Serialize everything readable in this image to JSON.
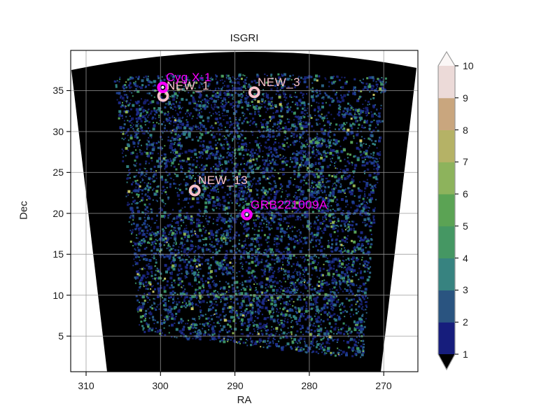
{
  "figure": {
    "title": "ISGRI"
  },
  "axes": {
    "xlabel": "RA",
    "ylabel": "Dec",
    "x_ticks": [
      "310",
      "300",
      "290",
      "280",
      "270"
    ],
    "y_ticks": [
      "35",
      "30",
      "25",
      "20",
      "15",
      "10",
      "5"
    ]
  },
  "chart_data": {
    "type": "heatmap",
    "title": "ISGRI",
    "xlabel": "RA",
    "ylabel": "Dec",
    "x_axis": {
      "ticks": [
        310,
        300,
        290,
        280,
        270
      ],
      "inverted": true,
      "approx_range": [
        312.0,
        265.4
      ]
    },
    "y_axis": {
      "ticks": [
        35,
        30,
        25,
        20,
        15,
        10,
        5
      ],
      "approx_range": [
        0.7,
        40.2
      ]
    },
    "grid": true,
    "field_of_view": "black wedge-shaped coded-mask mosaic, wider at top, curved upper edge",
    "colorbar": {
      "ticks": [
        1,
        2,
        3,
        4,
        5,
        6,
        7,
        8,
        9,
        10
      ],
      "segment_colors": [
        "#161d7c",
        "#2a5480",
        "#378380",
        "#459763",
        "#5ba354",
        "#8db35c",
        "#b5b266",
        "#c9a67e",
        "#ecdad8"
      ],
      "under_color": "#000000",
      "over_color": "#fbf7f6",
      "outline_color": "#999999"
    },
    "sources": [
      {
        "name": "NEW_1",
        "ra": 299.65,
        "dec": 34.35,
        "color": "#f9c2cb",
        "center": "open"
      },
      {
        "name": "Cyg X-1",
        "ra": 299.7,
        "dec": 35.4,
        "color": "#fb00fb",
        "center": "white"
      },
      {
        "name": "NEW_3",
        "ra": 287.4,
        "dec": 34.8,
        "color": "#f9c2cb",
        "center": "open"
      },
      {
        "name": "NEW_13",
        "ra": 295.4,
        "dec": 22.8,
        "color": "#f9c2cb",
        "center": "open"
      },
      {
        "name": "GRB221009A",
        "ra": 288.4,
        "dec": 19.85,
        "color": "#fb00fb",
        "center": "white"
      }
    ],
    "noise_palette": [
      {
        "color": "#161f6e",
        "w": 0.3
      },
      {
        "color": "#1c2a86",
        "w": 0.22
      },
      {
        "color": "#1d3f8d",
        "w": 0.14
      },
      {
        "color": "#2a6284",
        "w": 0.12
      },
      {
        "color": "#2f7f7e",
        "w": 0.1
      },
      {
        "color": "#3a8f63",
        "w": 0.07
      },
      {
        "color": "#57a057",
        "w": 0.03
      },
      {
        "color": "#8cb051",
        "w": 0.015
      },
      {
        "color": "#c2c061",
        "w": 0.005
      }
    ],
    "grid_color": "#9b9b9b"
  }
}
